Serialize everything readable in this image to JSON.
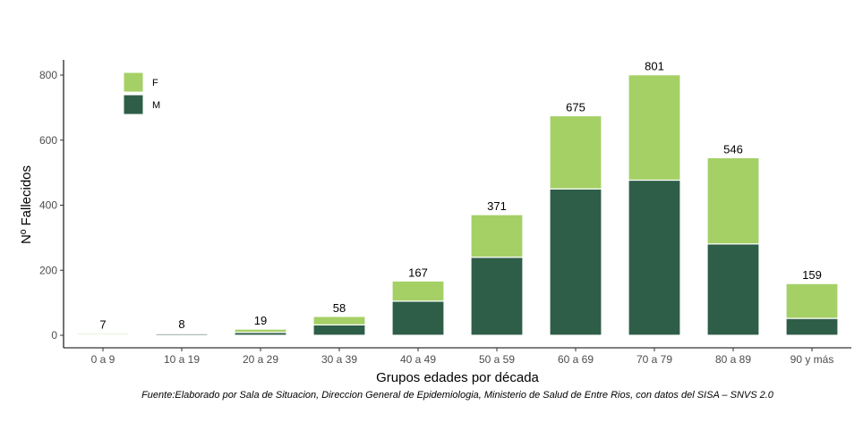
{
  "chart_data": {
    "type": "bar",
    "stacked": true,
    "title": "",
    "xlabel": "Grupos edades por década",
    "ylabel": "Nº Fallecidos",
    "categories": [
      "0 a 9",
      "10 a 19",
      "20 a 29",
      "30 a 39",
      "40 a 49",
      "50 a 59",
      "60 a 69",
      "70 a 79",
      "80 a 89",
      "90  y más"
    ],
    "series": [
      {
        "name": "M",
        "color": "#2e5e48",
        "values": [
          3,
          5,
          9,
          32,
          105,
          240,
          450,
          477,
          281,
          52
        ]
      },
      {
        "name": "F",
        "color": "#a5d066",
        "values": [
          4,
          3,
          10,
          26,
          62,
          131,
          225,
          324,
          265,
          107
        ]
      }
    ],
    "totals": [
      7,
      8,
      19,
      58,
      167,
      371,
      675,
      801,
      546,
      159
    ],
    "total_labels": [
      "7",
      "8",
      "19",
      "58",
      "167",
      "371",
      "675",
      "801",
      "546",
      "159"
    ],
    "ylim": [
      0,
      840
    ],
    "yticks": [
      0,
      200,
      400,
      600,
      800
    ],
    "ytick_labels": [
      "0",
      "200",
      "400",
      "600",
      "800"
    ],
    "legend_position": "top-left",
    "legend_order": [
      "F",
      "M"
    ],
    "grid": false
  },
  "source_note": "Fuente:Elaborado por Sala de Situacion, Direccion General de Epidemiologia, Ministerio de Salud de Entre Rios, con datos del SISA – SNVS 2.0"
}
